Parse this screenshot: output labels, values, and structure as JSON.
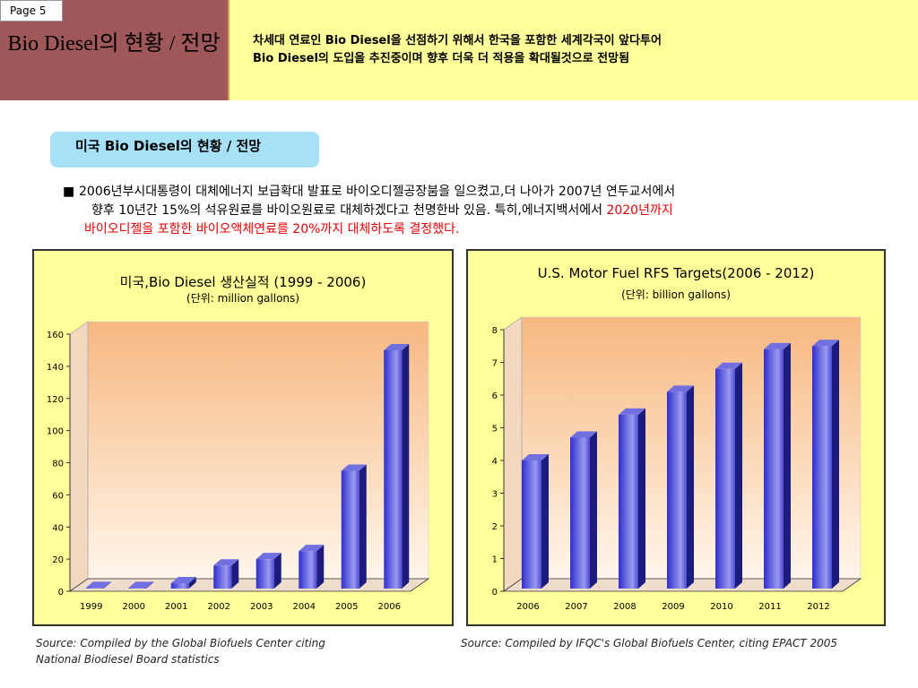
{
  "page_label": "Page 5",
  "title": "Bio Diesel의 현황 / 전망",
  "header_desc": {
    "line1": "차세대 연료인 Bio Diesel을 선점하기 위해서 한국을 포함한 세계각국이 앞다투어",
    "line2": "Bio Diesel의 도입을 추진중이며 향후 더욱 더 적용을 확대될것으로 전망됨"
  },
  "subtitle": "미국 Bio Diesel의 현황 / 전망",
  "bullet": {
    "marker": "■",
    "line1": "2006년부시대통령이 대체에너지 보급확대 발표로 바이오디젤공장붐을 일으켰고,더 나아가 2007년 연두교서에서",
    "line2_black": "향후 10년간 15%의 석유원료를 바이오원료로 대체하겠다고 천명한바 있음. 특히,에너지백서에서 ",
    "line2_red": "2020년까지",
    "line3_red": "바이오디젤을 포함한 바이오액체연료를 20%까지 대체하도록 결정했다."
  },
  "chart_data": [
    {
      "type": "bar",
      "title": "미국,Bio Diesel 생산실적 (1999 - 2006)",
      "unit": "(단위: million gallons)",
      "categories": [
        "1999",
        "2000",
        "2001",
        "2002",
        "2003",
        "2004",
        "2005",
        "2006"
      ],
      "values": [
        2,
        2,
        5,
        16,
        20,
        25,
        75,
        150
      ],
      "ylim": [
        0,
        160
      ],
      "yticks": [
        "0",
        "20",
        "40",
        "60",
        "80",
        "100",
        "120",
        "140",
        "160"
      ],
      "grid": false,
      "source": [
        "Source: Compiled by the Global Biofuels Center citing",
        "National Biodiesel Board statistics"
      ]
    },
    {
      "type": "bar",
      "title": "U.S. Motor Fuel RFS Targets(2006 - 2012)",
      "unit": "(단위: billion gallons)",
      "categories": [
        "2006",
        "2007",
        "2008",
        "2009",
        "2010",
        "2011",
        "2012"
      ],
      "values": [
        4.0,
        4.7,
        5.4,
        6.1,
        6.8,
        7.4,
        7.5
      ],
      "ylim": [
        0,
        8
      ],
      "yticks": [
        "0",
        "1",
        "2",
        "3",
        "4",
        "5",
        "6",
        "7",
        "8"
      ],
      "grid": false,
      "source": [
        "Source: Compiled by IFQC's Global Biofuels Center, citing EPACT 2005"
      ]
    }
  ],
  "colors": {
    "header_bg": "#ffff99",
    "title_bg": "#a0575a",
    "pill_bg": "#a7e1f7",
    "highlight": "#e60000",
    "bar_front": "#3b3bd8",
    "bar_side": "#1a1a8a"
  }
}
